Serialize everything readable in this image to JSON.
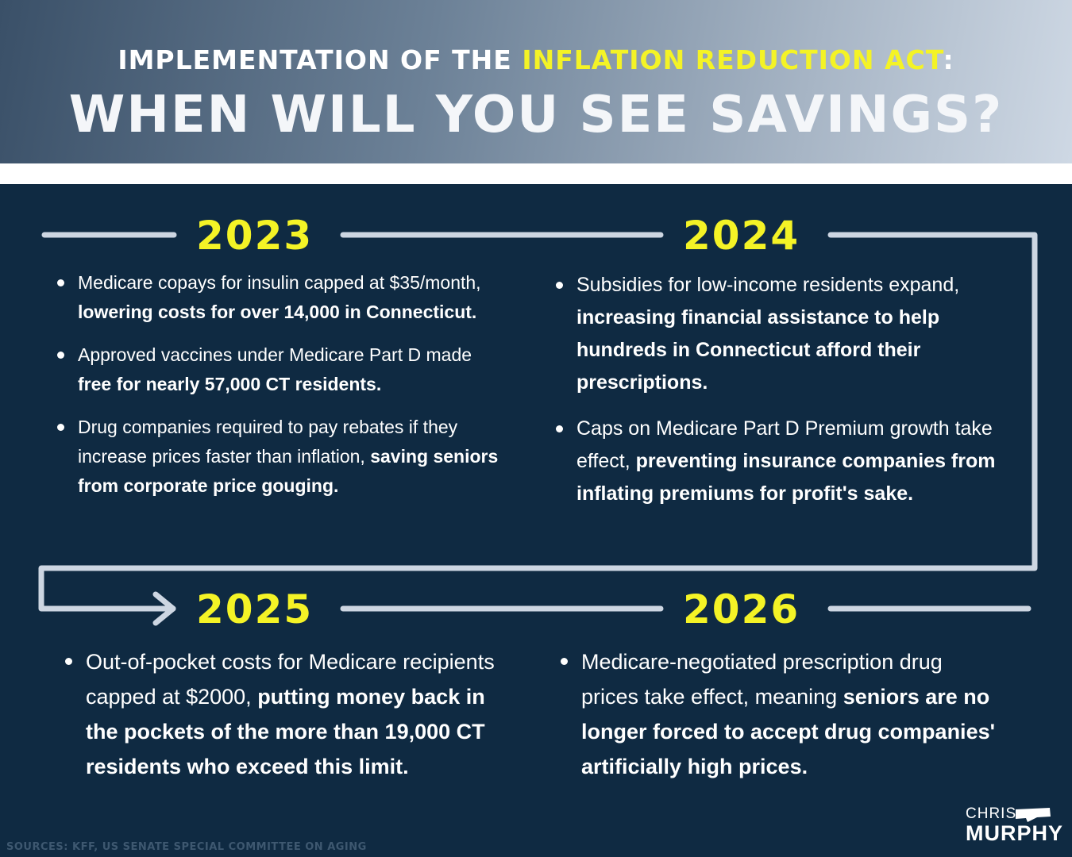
{
  "header": {
    "line1_prefix": "IMPLEMENTATION OF THE ",
    "line1_highlight": "INFLATION REDUCTION ACT",
    "line1_suffix": ":",
    "line2": "WHEN WILL YOU SEE SAVINGS?"
  },
  "timeline": [
    {
      "year": "2023",
      "items": [
        {
          "plain": "Medicare copays for insulin capped at $35/month, ",
          "bold": "lowering costs for over 14,000 in Connecticut."
        },
        {
          "plain": "Approved vaccines under Medicare Part D made ",
          "bold": "free for nearly 57,000 CT residents."
        },
        {
          "plain": "Drug companies required to pay rebates if they increase prices faster than inflation, ",
          "bold": "saving seniors from corporate price gouging."
        }
      ]
    },
    {
      "year": "2024",
      "items": [
        {
          "plain": "Subsidies for low-income residents expand, ",
          "bold": "increasing financial assistance to help hundreds in Connecticut afford their prescriptions."
        },
        {
          "plain": "Caps on Medicare Part D Premium growth take effect, ",
          "bold": "preventing insurance companies from inflating premiums for profit's sake."
        }
      ]
    },
    {
      "year": "2025",
      "items": [
        {
          "plain": "Out-of-pocket costs for Medicare recipients capped at $2000, ",
          "bold": "putting money back in the pockets of the more than 19,000 CT residents who exceed this limit."
        }
      ]
    },
    {
      "year": "2026",
      "items": [
        {
          "plain": "Medicare-negotiated prescription drug prices take effect, meaning ",
          "bold": "seniors are no longer forced to accept drug companies' artificially high prices."
        }
      ]
    }
  ],
  "footer": {
    "sources": "SOURCES: KFF, US SENATE SPECIAL COMMITTEE ON AGING",
    "logo_top": "CHRIS",
    "logo_bottom": "MURPHY"
  },
  "colors": {
    "background": "#0f2a42",
    "highlight": "#f4f326",
    "connector": "#cdd6e2"
  }
}
